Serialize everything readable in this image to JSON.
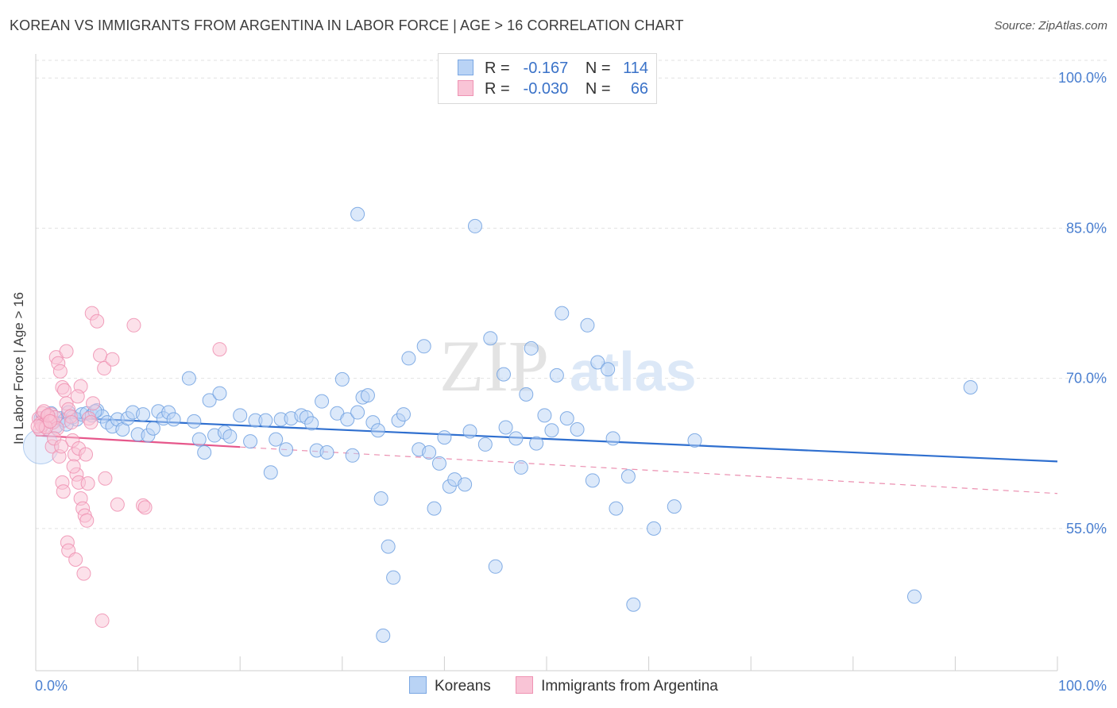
{
  "title": "KOREAN VS IMMIGRANTS FROM ARGENTINA IN LABOR FORCE | AGE > 16 CORRELATION CHART",
  "source": "Source: ZipAtlas.com",
  "watermark": {
    "zip": "ZIP",
    "atlas": "atlas"
  },
  "legend": {
    "r_label": "R =",
    "n_label": "N =",
    "rows": [
      {
        "name": "Koreans",
        "r": "-0.167",
        "n": "114",
        "fill": "#b9d3f5",
        "stroke": "#7aa7e3"
      },
      {
        "name": "Immigrants from Argentina",
        "r": "-0.030",
        "n": "66",
        "fill": "#f9c4d6",
        "stroke": "#ef93b3"
      }
    ]
  },
  "chart_data": {
    "type": "scatter",
    "title": "KOREAN VS IMMIGRANTS FROM ARGENTINA IN LABOR FORCE | AGE > 16 CORRELATION CHART",
    "xlabel": "",
    "ylabel": "In Labor Force | Age > 16",
    "xlim": [
      0,
      100
    ],
    "ylim": [
      40.8,
      102
    ],
    "x_tick_labels": [
      "0.0%",
      "100.0%"
    ],
    "y_ticks": [
      55,
      70,
      85,
      100
    ],
    "y_tick_labels": [
      "55.0%",
      "70.0%",
      "85.0%",
      "100.0%"
    ],
    "grid": true,
    "legend_position": "bottom-center",
    "series": [
      {
        "name": "Koreans",
        "color": "#6fa0e0",
        "fill": "#b9d3f5",
        "line_color": "#2f6fcf",
        "trend": {
          "x": [
            0,
            100
          ],
          "y": [
            66.2,
            61.7
          ],
          "style": "solid"
        },
        "points": [
          [
            0.5,
            66.0
          ],
          [
            0.8,
            65.5
          ],
          [
            1.2,
            66.2
          ],
          [
            1.6,
            65.6
          ],
          [
            2.0,
            65.2
          ],
          [
            2.4,
            66.0
          ],
          [
            2.8,
            65.8
          ],
          [
            3.2,
            66.6
          ],
          [
            3.6,
            66.1
          ],
          [
            4.0,
            65.9
          ],
          [
            4.5,
            66.4
          ],
          [
            5.0,
            66.5
          ],
          [
            5.5,
            66.3
          ],
          [
            6.0,
            66.8
          ],
          [
            6.5,
            66.2
          ],
          [
            7.0,
            65.6
          ],
          [
            7.5,
            65.2
          ],
          [
            8.0,
            65.9
          ],
          [
            8.5,
            64.9
          ],
          [
            9.0,
            66.0
          ],
          [
            9.5,
            66.6
          ],
          [
            10.0,
            64.4
          ],
          [
            10.5,
            66.4
          ],
          [
            11.0,
            64.3
          ],
          [
            11.5,
            65.0
          ],
          [
            12.0,
            66.7
          ],
          [
            12.5,
            66.0
          ],
          [
            13.0,
            66.6
          ],
          [
            13.5,
            65.9
          ],
          [
            15.0,
            70.0
          ],
          [
            15.5,
            65.7
          ],
          [
            16.0,
            63.9
          ],
          [
            16.5,
            62.6
          ],
          [
            17.0,
            67.8
          ],
          [
            17.5,
            64.3
          ],
          [
            18.0,
            68.5
          ],
          [
            18.5,
            64.6
          ],
          [
            19.0,
            64.2
          ],
          [
            20.0,
            66.3
          ],
          [
            21.0,
            63.7
          ],
          [
            21.5,
            65.8
          ],
          [
            22.5,
            65.8
          ],
          [
            23.0,
            60.6
          ],
          [
            23.5,
            63.9
          ],
          [
            24.0,
            65.9
          ],
          [
            24.5,
            62.9
          ],
          [
            25.0,
            66.0
          ],
          [
            26.0,
            66.3
          ],
          [
            26.5,
            66.1
          ],
          [
            27.0,
            65.5
          ],
          [
            27.5,
            62.8
          ],
          [
            28.0,
            67.7
          ],
          [
            28.5,
            62.6
          ],
          [
            29.5,
            66.5
          ],
          [
            30.0,
            69.9
          ],
          [
            30.5,
            65.9
          ],
          [
            31.0,
            62.3
          ],
          [
            31.5,
            66.6
          ],
          [
            32.0,
            68.1
          ],
          [
            32.5,
            68.3
          ],
          [
            33.0,
            65.6
          ],
          [
            31.5,
            86.4
          ],
          [
            33.5,
            64.8
          ],
          [
            33.8,
            58.0
          ],
          [
            34.5,
            53.2
          ],
          [
            35.0,
            50.1
          ],
          [
            35.5,
            65.8
          ],
          [
            36.0,
            66.4
          ],
          [
            36.5,
            72.0
          ],
          [
            37.5,
            62.9
          ],
          [
            38.0,
            73.2
          ],
          [
            38.5,
            62.6
          ],
          [
            39.0,
            57.0
          ],
          [
            39.5,
            61.5
          ],
          [
            40.0,
            64.1
          ],
          [
            40.5,
            59.2
          ],
          [
            41.0,
            59.9
          ],
          [
            42.0,
            59.4
          ],
          [
            42.5,
            64.7
          ],
          [
            43.0,
            85.2
          ],
          [
            44.5,
            74.0
          ],
          [
            44.0,
            63.4
          ],
          [
            45.0,
            51.2
          ],
          [
            45.8,
            70.4
          ],
          [
            46.0,
            65.1
          ],
          [
            47.0,
            64.0
          ],
          [
            47.5,
            61.1
          ],
          [
            48.0,
            68.4
          ],
          [
            48.5,
            73.0
          ],
          [
            49.0,
            63.5
          ],
          [
            49.8,
            66.3
          ],
          [
            50.5,
            64.8
          ],
          [
            51.0,
            70.3
          ],
          [
            51.5,
            76.5
          ],
          [
            52.0,
            66.0
          ],
          [
            53.0,
            64.9
          ],
          [
            54.0,
            75.3
          ],
          [
            54.5,
            59.8
          ],
          [
            55.0,
            71.6
          ],
          [
            56.0,
            70.9
          ],
          [
            56.5,
            64.0
          ],
          [
            56.8,
            57.0
          ],
          [
            58.0,
            60.2
          ],
          [
            60.5,
            55.0
          ],
          [
            64.5,
            63.8
          ],
          [
            62.5,
            57.2
          ],
          [
            58.5,
            47.4
          ],
          [
            86.0,
            48.2
          ],
          [
            91.5,
            69.1
          ],
          [
            34.0,
            44.3
          ],
          [
            1.0,
            65.8
          ],
          [
            1.5,
            66.5
          ],
          [
            3.0,
            65.4
          ],
          [
            5.8,
            66.7
          ]
        ]
      },
      {
        "name": "Immigrants from Argentina",
        "color": "#ee8fb0",
        "fill": "#f9c4d6",
        "line_color": "#e6578b",
        "trend": {
          "x": [
            0,
            100
          ],
          "y": [
            64.3,
            58.5
          ],
          "solid_until": 20,
          "style": "solid-then-dashed"
        },
        "points": [
          [
            0.3,
            66.0
          ],
          [
            0.5,
            65.5
          ],
          [
            0.7,
            66.5
          ],
          [
            0.9,
            65.2
          ],
          [
            1.1,
            66.2
          ],
          [
            1.3,
            65.8
          ],
          [
            1.5,
            66.4
          ],
          [
            1.7,
            65.6
          ],
          [
            1.9,
            66.1
          ],
          [
            2.1,
            65.0
          ],
          [
            0.4,
            64.9
          ],
          [
            0.6,
            65.3
          ],
          [
            0.8,
            66.7
          ],
          [
            1.0,
            65.1
          ],
          [
            1.2,
            66.3
          ],
          [
            1.4,
            65.7
          ],
          [
            1.6,
            63.2
          ],
          [
            1.8,
            64.0
          ],
          [
            2.0,
            72.1
          ],
          [
            2.2,
            71.5
          ],
          [
            2.4,
            70.7
          ],
          [
            2.6,
            69.1
          ],
          [
            2.8,
            68.8
          ],
          [
            3.0,
            67.5
          ],
          [
            3.2,
            66.9
          ],
          [
            3.4,
            66.2
          ],
          [
            3.6,
            63.8
          ],
          [
            3.8,
            62.4
          ],
          [
            4.0,
            60.4
          ],
          [
            4.2,
            59.6
          ],
          [
            4.4,
            58.0
          ],
          [
            4.6,
            57.0
          ],
          [
            4.8,
            56.3
          ],
          [
            5.0,
            55.8
          ],
          [
            2.6,
            59.6
          ],
          [
            2.7,
            58.7
          ],
          [
            3.1,
            53.6
          ],
          [
            3.2,
            52.8
          ],
          [
            3.9,
            51.9
          ],
          [
            4.7,
            50.5
          ],
          [
            5.5,
            76.5
          ],
          [
            6.0,
            75.7
          ],
          [
            6.3,
            72.3
          ],
          [
            6.7,
            71.0
          ],
          [
            7.5,
            71.9
          ],
          [
            9.6,
            75.3
          ],
          [
            18.0,
            72.9
          ],
          [
            3.0,
            72.7
          ],
          [
            4.4,
            69.2
          ],
          [
            4.1,
            68.2
          ],
          [
            5.2,
            66.0
          ],
          [
            5.6,
            67.5
          ],
          [
            2.3,
            62.2
          ],
          [
            3.7,
            61.2
          ],
          [
            6.8,
            60.0
          ],
          [
            8.0,
            57.4
          ],
          [
            10.5,
            57.3
          ],
          [
            10.7,
            57.1
          ],
          [
            6.5,
            45.8
          ],
          [
            4.2,
            63.0
          ],
          [
            5.1,
            59.5
          ],
          [
            3.5,
            65.6
          ],
          [
            0.2,
            65.2
          ],
          [
            2.5,
            63.2
          ],
          [
            4.9,
            62.4
          ],
          [
            5.4,
            65.6
          ]
        ]
      }
    ]
  },
  "bottom_legend": [
    "Koreans",
    "Immigrants from Argentina"
  ]
}
